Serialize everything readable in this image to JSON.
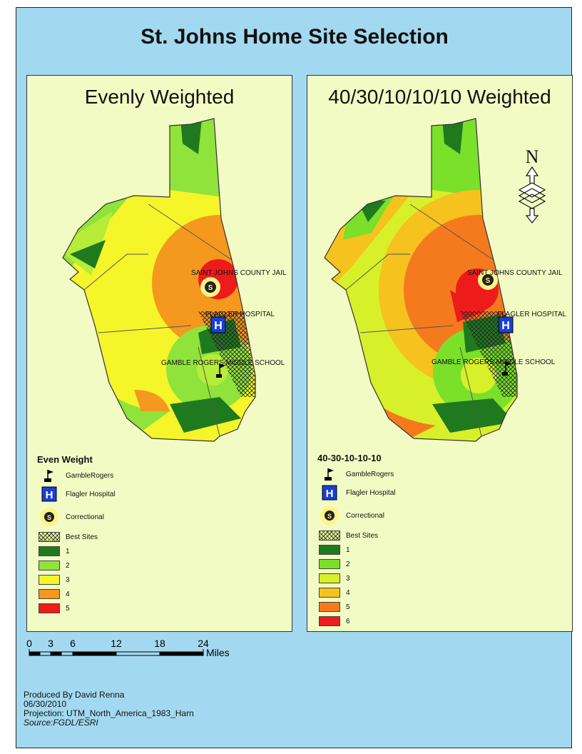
{
  "title": "St. Johns Home Site Selection",
  "left_map": {
    "title": "Evenly Weighted",
    "labels": {
      "jail": "SAINT JOHNS COUNTY JAIL",
      "hospital": "FLAGLER HOSPITAL",
      "school": "GAMBLE ROGERS MIDDLE SCHOOL"
    },
    "legend": {
      "title": "Even Weight",
      "gamble": "GambleRogers",
      "hospital": "Flagler Hospital",
      "correctional": "Correctional",
      "best": "Best Sites",
      "classes": [
        {
          "label": "1",
          "color": "#1f7a1f"
        },
        {
          "label": "2",
          "color": "#8fe33a"
        },
        {
          "label": "3",
          "color": "#f5f52a"
        },
        {
          "label": "4",
          "color": "#f5981e"
        },
        {
          "label": "5",
          "color": "#ee1b1b"
        }
      ]
    }
  },
  "right_map": {
    "title": "40/30/10/10/10 Weighted",
    "labels": {
      "jail": "SAINT JOHNS COUNTY JAIL",
      "hospital": "FLAGLER HOSPITAL",
      "school": "GAMBLE ROGERS MIDDLE SCHOOL"
    },
    "legend": {
      "title": "40-30-10-10-10",
      "gamble": "GambleRogers",
      "hospital": "Flagler Hospital",
      "correctional": "Correctional",
      "best": "Best Sites",
      "classes": [
        {
          "label": "1",
          "color": "#1f7a1f"
        },
        {
          "label": "2",
          "color": "#7ae02a"
        },
        {
          "label": "3",
          "color": "#d8f02a"
        },
        {
          "label": "4",
          "color": "#f5c21e"
        },
        {
          "label": "5",
          "color": "#f57a1e"
        },
        {
          "label": "6",
          "color": "#ee1b1b"
        }
      ]
    }
  },
  "north_arrow": {
    "label": "N"
  },
  "scale": {
    "ticks": [
      "0",
      "3",
      "6",
      "12",
      "18",
      "24"
    ],
    "unit": "Miles"
  },
  "credits": {
    "author": "Produced By David Renna",
    "date": "06/30/2010",
    "projection": "Projection: UTM_North_America_1983_Harn",
    "source": "Source:FGDL/ESRI"
  }
}
